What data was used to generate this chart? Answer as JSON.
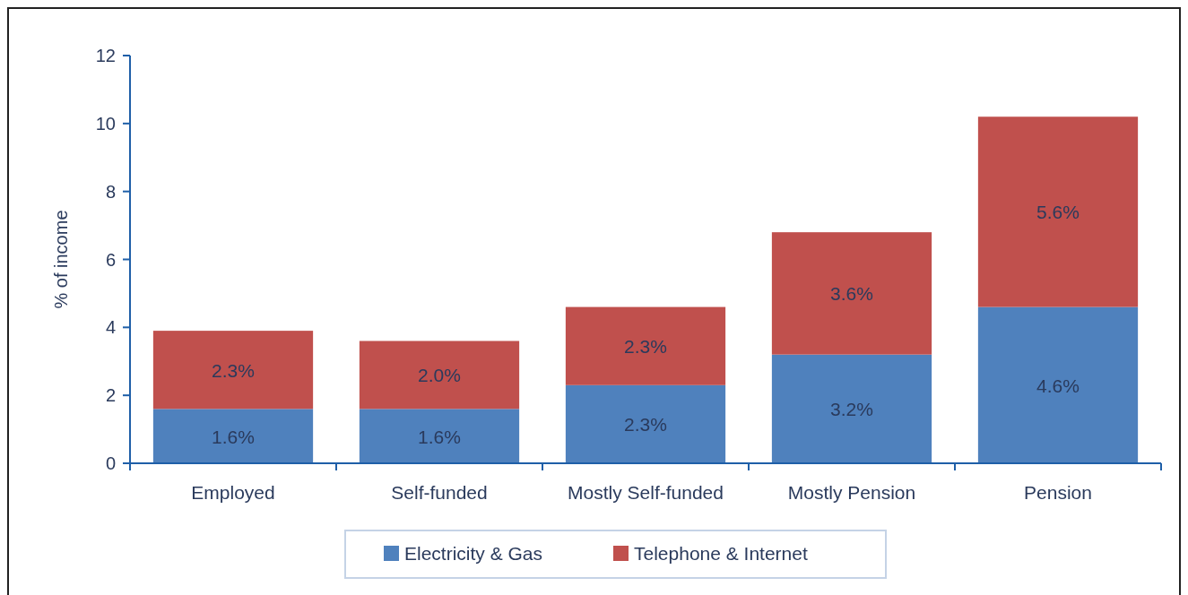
{
  "chart_data": {
    "type": "bar",
    "stacked": true,
    "ylabel": "% of income",
    "categories": [
      "Employed",
      "Self-funded",
      "Mostly Self-funded",
      "Mostly Pension",
      "Pension"
    ],
    "series": [
      {
        "name": "Electricity & Gas",
        "color": "#4f81bd",
        "values": [
          1.6,
          1.6,
          2.3,
          3.2,
          4.6
        ],
        "value_labels": [
          "1.6%",
          "1.6%",
          "2.3%",
          "3.2%",
          "4.6%"
        ]
      },
      {
        "name": "Telephone & Internet",
        "color": "#c0504d",
        "values": [
          2.3,
          2.0,
          2.3,
          3.6,
          5.6
        ],
        "value_labels": [
          "2.3%",
          "2.0%",
          "2.3%",
          "3.6%",
          "5.6%"
        ]
      }
    ],
    "ylim": [
      0,
      12
    ],
    "yticks": [
      0,
      2,
      4,
      6,
      8,
      10,
      12
    ],
    "legend": "bottom",
    "grid": false
  }
}
